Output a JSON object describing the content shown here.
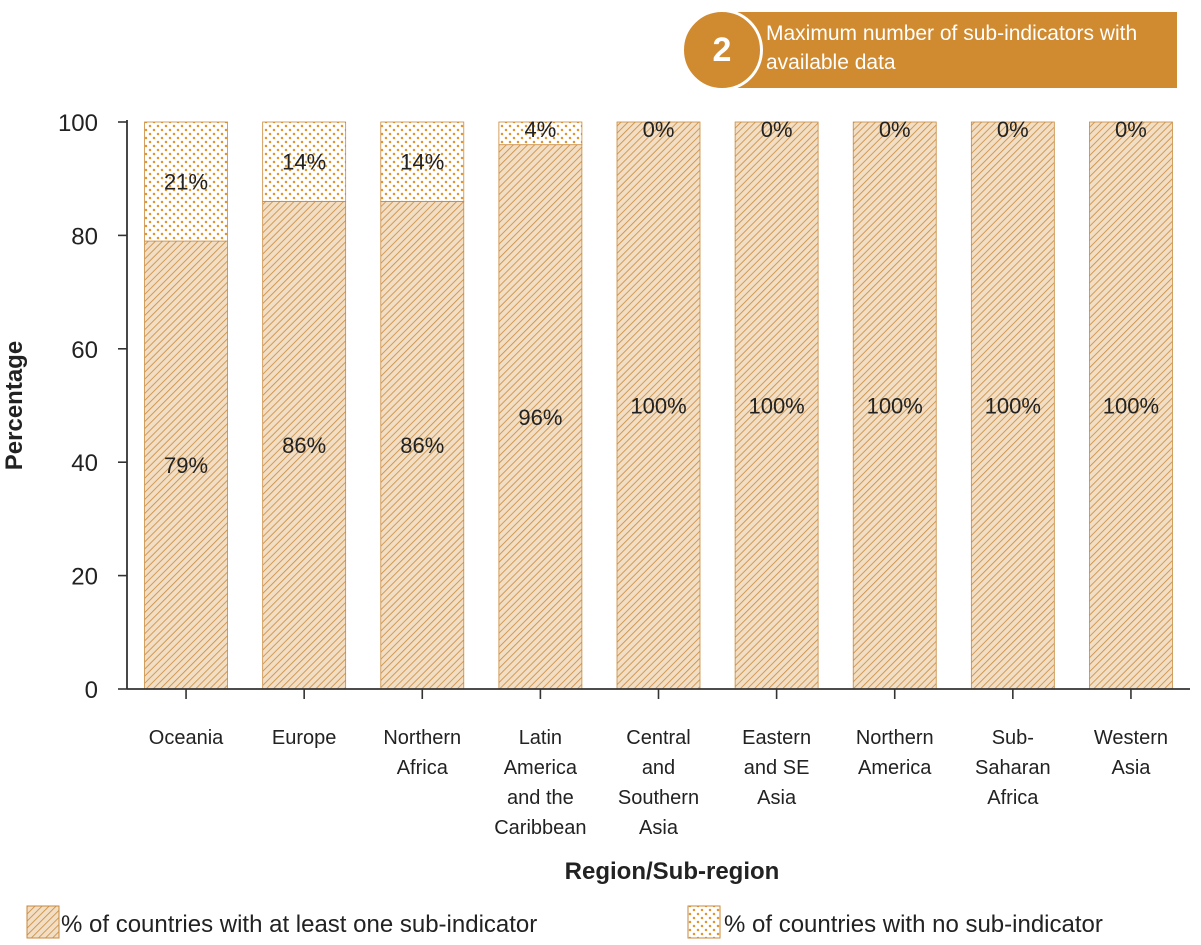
{
  "badge": {
    "number": "2",
    "text": "Maximum number of sub-indicators with available data"
  },
  "colors": {
    "accent": "#d08a30",
    "hatch_fill": "#f1dec4",
    "hatch_line": "#c98a3c",
    "dot": "#e0952f",
    "axis": "#333333"
  },
  "chart_data": {
    "type": "bar",
    "stacked": true,
    "title": "",
    "xlabel": "Region/Sub-region",
    "ylabel": "Percentage",
    "ylim": [
      0,
      100
    ],
    "yticks": [
      0,
      20,
      40,
      60,
      80,
      100
    ],
    "grid": false,
    "legend_position": "bottom",
    "categories": [
      [
        "Oceania"
      ],
      [
        "Europe"
      ],
      [
        "Northern",
        "Africa"
      ],
      [
        "Latin",
        "America",
        "and the",
        "Caribbean"
      ],
      [
        "Central",
        "and",
        "Southern",
        "Asia"
      ],
      [
        "Eastern",
        "and SE",
        "Asia"
      ],
      [
        "Northern",
        "America"
      ],
      [
        "Sub-",
        "Saharan",
        "Africa"
      ],
      [
        "Western",
        "Asia"
      ]
    ],
    "series": [
      {
        "name": "% of countries with at least one sub-indicator",
        "pattern": "hatch",
        "values": [
          79,
          86,
          86,
          96,
          100,
          100,
          100,
          100,
          100
        ],
        "labels": [
          "79%",
          "86%",
          "86%",
          "96%",
          "100%",
          "100%",
          "100%",
          "100%",
          "100%"
        ]
      },
      {
        "name": "% of countries with no sub-indicator",
        "pattern": "dots",
        "values": [
          21,
          14,
          14,
          4,
          0,
          0,
          0,
          0,
          0
        ],
        "labels": [
          "21%",
          "14%",
          "14%",
          "4%",
          "0%",
          "0%",
          "0%",
          "0%",
          "0%"
        ]
      }
    ]
  }
}
